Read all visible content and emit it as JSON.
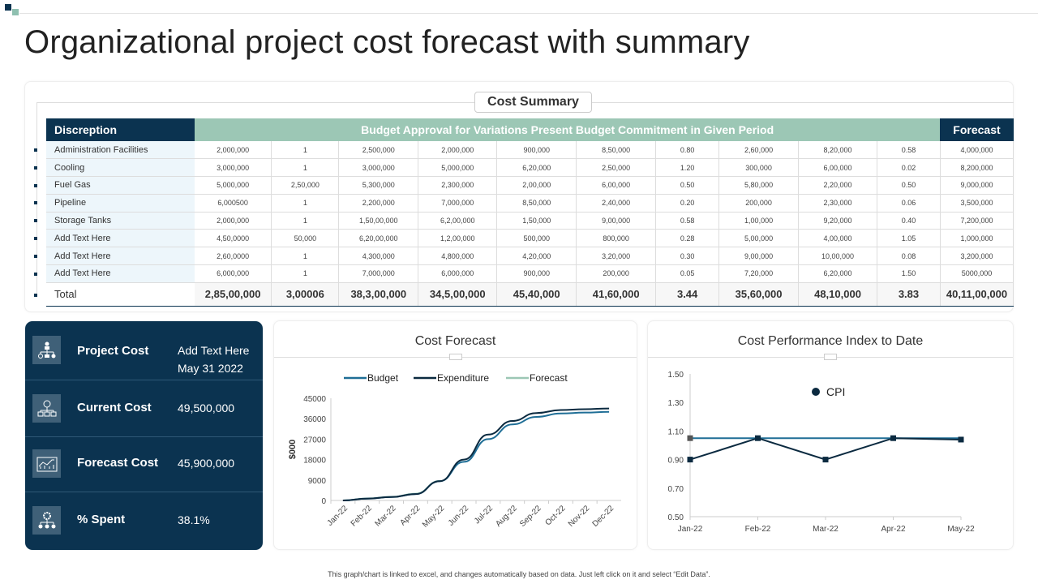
{
  "title": "Organizational project cost forecast with summary",
  "cost_summary": {
    "title": "Cost Summary",
    "headers": {
      "description": "Discreption",
      "middle": "Budget Approval for Variations Present Budget Commitment in Given Period",
      "forecast": "Forecast"
    },
    "rows": [
      {
        "label": "Administration Facilities",
        "values": [
          "2,000,000",
          "1",
          "2,500,000",
          "2,000,000",
          "900,000",
          "8,50,000",
          "0.80",
          "2,60,000",
          "8,20,000",
          "0.58"
        ],
        "forecast": "4,000,000"
      },
      {
        "label": "Cooling",
        "values": [
          "3,000,000",
          "1",
          "3,000,000",
          "5,000,000",
          "6,20,000",
          "2,50,000",
          "1.20",
          "300,000",
          "6,00,000",
          "0.02"
        ],
        "forecast": "8,200,000"
      },
      {
        "label": "Fuel Gas",
        "values": [
          "5,000,000",
          "2,50,000",
          "5,300,000",
          "2,300,000",
          "2,00,000",
          "6,00,000",
          "0.50",
          "5,80,000",
          "2,20,000",
          "0.50"
        ],
        "forecast": "9,000,000"
      },
      {
        "label": "Pipeline",
        "values": [
          "6,000500",
          "1",
          "2,200,000",
          "7,000,000",
          "8,50,000",
          "2,40,000",
          "0.20",
          "200,000",
          "2,30,000",
          "0.06"
        ],
        "forecast": "3,500,000"
      },
      {
        "label": "Storage Tanks",
        "values": [
          "2,000,000",
          "1",
          "1,50,00,000",
          "6,2,00,000",
          "1,50,000",
          "9,00,000",
          "0.58",
          "1,00,000",
          "9,20,000",
          "0.40"
        ],
        "forecast": "7,200,000"
      },
      {
        "label": "Add Text Here",
        "values": [
          "4,50,0000",
          "50,000",
          "6,20,00,000",
          "1,2,00,000",
          "500,000",
          "800,000",
          "0.28",
          "5,00,000",
          "4,00,000",
          "1.05"
        ],
        "forecast": "1,000,000"
      },
      {
        "label": "Add Text Here",
        "values": [
          "2,60,0000",
          "1",
          "4,300,000",
          "4,800,000",
          "4,20,000",
          "3,20,000",
          "0.30",
          "9,00,000",
          "10,00,000",
          "0.08"
        ],
        "forecast": "3,200,000"
      },
      {
        "label": "Add Text Here",
        "values": [
          "6,000,000",
          "1",
          "7,000,000",
          "6,000,000",
          "900,000",
          "200,000",
          "0.05",
          "7,20,000",
          "6,20,000",
          "1.50"
        ],
        "forecast": "5000,000"
      }
    ],
    "total": {
      "label": "Total",
      "values": [
        "2,85,00,000",
        "3,00006",
        "38,3,00,000",
        "34,5,00,000",
        "45,40,000",
        "41,60,000",
        "3.44",
        "35,60,000",
        "48,10,000",
        "3.83"
      ],
      "forecast": "40,11,00,000"
    }
  },
  "summary": [
    {
      "label": "Project Cost",
      "value": "Add Text Here",
      "value2": "May 31 2022",
      "icon": "org-chart-dollar-icon"
    },
    {
      "label": "Current Cost",
      "value": "49,500,000",
      "icon": "hierarchy-icon"
    },
    {
      "label": "Forecast Cost",
      "value": "45,900,000",
      "icon": "growth-chart-icon"
    },
    {
      "label": "% Spent",
      "value": "38.1%",
      "icon": "gear-network-icon"
    }
  ],
  "chart_data": [
    {
      "type": "line",
      "title": "Cost Forecast",
      "ylabel": "$000",
      "xlabel": "",
      "categories": [
        "Jan-22",
        "Feb-22",
        "Mar-22",
        "Apr-22",
        "May-22",
        "Jun-22",
        "Jul-22",
        "Aug-22",
        "Sep-22",
        "Oct-22",
        "Nov-22",
        "Dec-22"
      ],
      "ylim": [
        0,
        45000
      ],
      "yticks": [
        0,
        9000,
        18000,
        27000,
        36000,
        45000
      ],
      "legend": "top",
      "series": [
        {
          "name": "Budget",
          "color": "#1f6e96",
          "values": [
            0,
            800,
            1500,
            2800,
            8500,
            17000,
            27000,
            33500,
            36800,
            38300,
            38700,
            39000
          ]
        },
        {
          "name": "Expenditure",
          "color": "#0b2a40",
          "values": [
            0,
            800,
            1500,
            2800,
            8500,
            18000,
            29000,
            35000,
            38500,
            39800,
            40200,
            40500
          ]
        },
        {
          "name": "Forecast",
          "color": "#9cc7b5",
          "values": [
            0,
            900,
            1600,
            3000,
            8600,
            null,
            null,
            null,
            null,
            null,
            null,
            null
          ]
        }
      ]
    },
    {
      "type": "line",
      "title": "Cost Performance Index to Date",
      "categories": [
        "Jan-22",
        "Feb-22",
        "Mar-22",
        "Apr-22",
        "May-22"
      ],
      "ylim": [
        0.5,
        1.5
      ],
      "yticks": [
        "0.50",
        "0.70",
        "0.90",
        "1.10",
        "1.30",
        "1.50"
      ],
      "legend": "top-center",
      "series": [
        {
          "name": "CPI",
          "color": "#0b2a40",
          "values": [
            0.9,
            1.05,
            0.9,
            1.05,
            1.04
          ]
        },
        {
          "color": "#1f6e96",
          "values": [
            1.05,
            1.05,
            1.05,
            1.05,
            1.05
          ]
        }
      ]
    }
  ],
  "footer": "This graph/chart is linked to excel, and changes automatically based on data. Just left click on it and select “Edit Data”."
}
